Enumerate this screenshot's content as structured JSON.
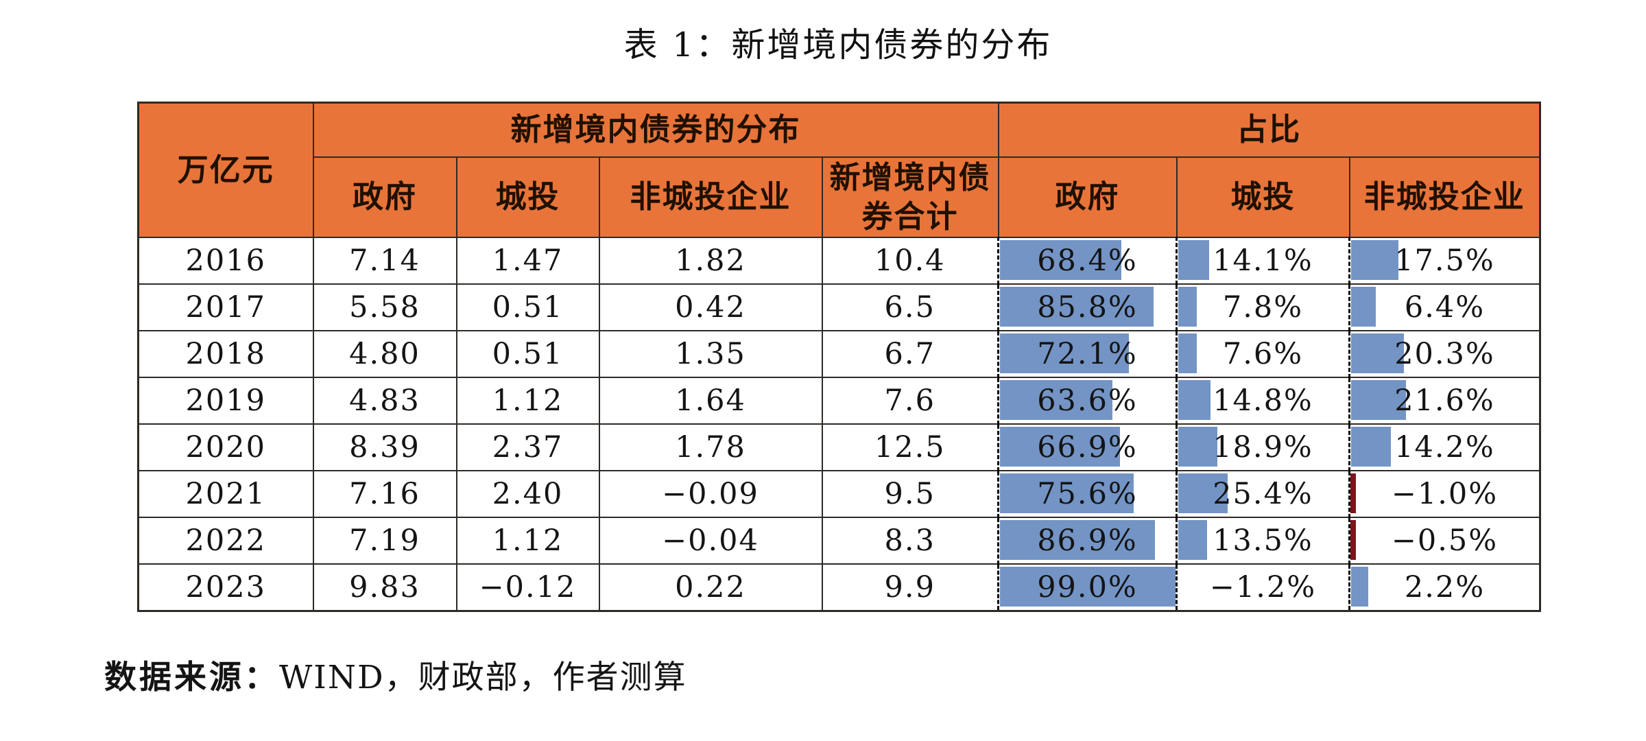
{
  "title": "表 1：新增境内债券的分布",
  "colors": {
    "header_orange": "#E8743A",
    "bar_blue": "#7394C5",
    "negative_bar_red": "#7A161A",
    "grid_border": "#2e2a26"
  },
  "table": {
    "unit_header": "万亿元",
    "group_headers": {
      "distribution": "新增境内债券的分布",
      "ratio": "占比"
    },
    "dist_columns": [
      "政府",
      "城投",
      "非城投企业",
      "新增境内债券合计"
    ],
    "ratio_columns": [
      "政府",
      "城投",
      "非城投企业"
    ],
    "rows": [
      {
        "year": "2016",
        "values": [
          "7.14",
          "1.47",
          "1.82",
          "10.4"
        ],
        "ratios": [
          {
            "text": "68.4%",
            "bar": 69
          },
          {
            "text": "14.1%",
            "bar": 18
          },
          {
            "text": "17.5%",
            "bar": 25
          }
        ]
      },
      {
        "year": "2017",
        "values": [
          "5.58",
          "0.51",
          "0.42",
          "6.5"
        ],
        "ratios": [
          {
            "text": "85.8%",
            "bar": 87
          },
          {
            "text": "7.8%",
            "bar": 11
          },
          {
            "text": "6.4%",
            "bar": 13
          }
        ]
      },
      {
        "year": "2018",
        "values": [
          "4.80",
          "0.51",
          "1.35",
          "6.7"
        ],
        "ratios": [
          {
            "text": "72.1%",
            "bar": 73
          },
          {
            "text": "7.6%",
            "bar": 11
          },
          {
            "text": "20.3%",
            "bar": 28
          }
        ]
      },
      {
        "year": "2019",
        "values": [
          "4.83",
          "1.12",
          "1.64",
          "7.6"
        ],
        "ratios": [
          {
            "text": "63.6%",
            "bar": 64
          },
          {
            "text": "14.8%",
            "bar": 19
          },
          {
            "text": "21.6%",
            "bar": 29
          }
        ]
      },
      {
        "year": "2020",
        "values": [
          "8.39",
          "2.37",
          "1.78",
          "12.5"
        ],
        "ratios": [
          {
            "text": "66.9%",
            "bar": 68
          },
          {
            "text": "18.9%",
            "bar": 23
          },
          {
            "text": "14.2%",
            "bar": 21
          }
        ]
      },
      {
        "year": "2021",
        "values": [
          "7.16",
          "2.40",
          "−0.09",
          "9.5"
        ],
        "ratios": [
          {
            "text": "75.6%",
            "bar": 76
          },
          {
            "text": "25.4%",
            "bar": 29
          },
          {
            "text": "−1.0%",
            "bar": 0,
            "neg": true
          }
        ]
      },
      {
        "year": "2022",
        "values": [
          "7.19",
          "1.12",
          "−0.04",
          "8.3"
        ],
        "ratios": [
          {
            "text": "86.9%",
            "bar": 88
          },
          {
            "text": "13.5%",
            "bar": 17
          },
          {
            "text": "−0.5%",
            "bar": 0,
            "neg": true
          }
        ]
      },
      {
        "year": "2023",
        "values": [
          "9.83",
          "−0.12",
          "0.22",
          "9.9"
        ],
        "ratios": [
          {
            "text": "99.0%",
            "bar": 100
          },
          {
            "text": "−1.2%",
            "bar": 0
          },
          {
            "text": "2.2%",
            "bar": 9
          }
        ]
      }
    ]
  },
  "source": {
    "label": "数据来源：",
    "text": "WIND，财政部，作者测算"
  }
}
